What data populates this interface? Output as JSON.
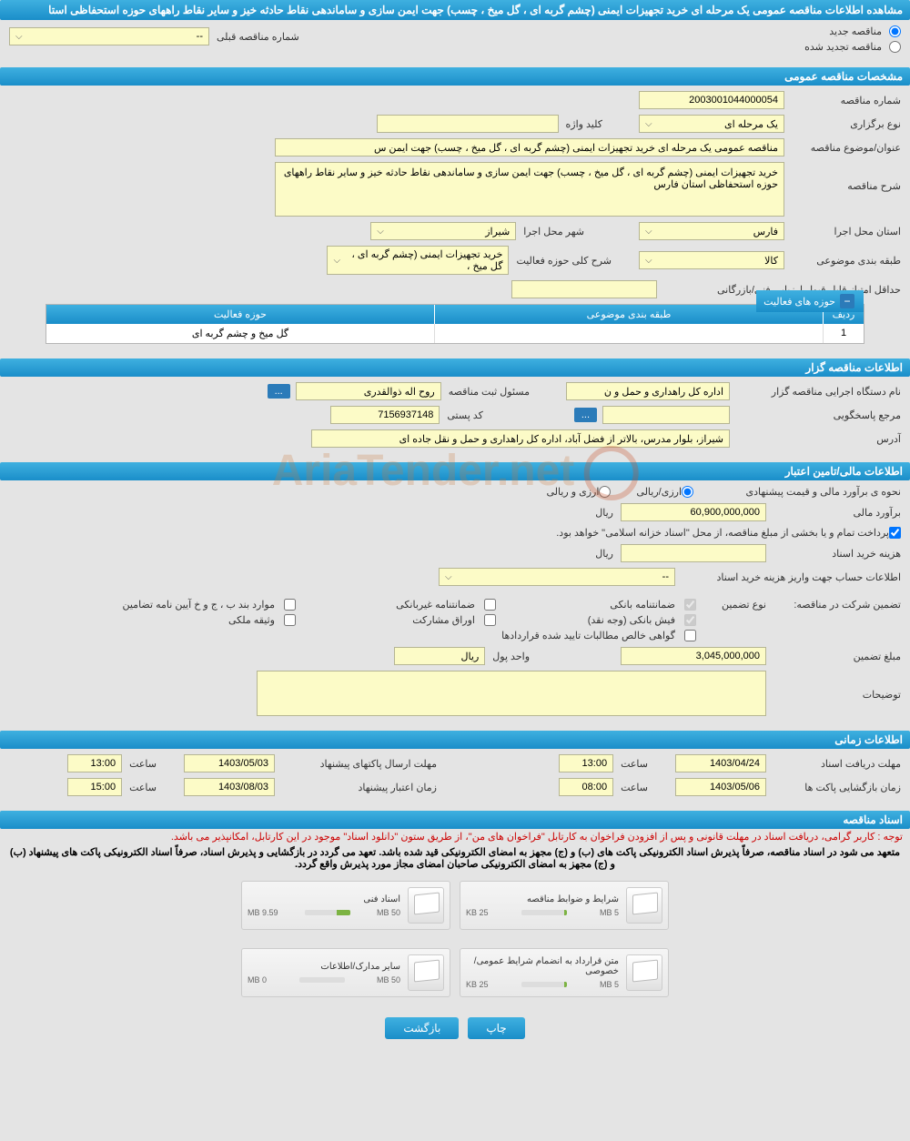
{
  "header": {
    "title": "مشاهده اطلاعات مناقصه عمومی یک مرحله ای خرید تجهیزات ایمنی (چشم گربه ای ، گل میخ ، چسب) جهت ایمن سازی و ساماندهی نقاط حادثه خیز و سایر نقاط راههای حوزه استحفاظی استا"
  },
  "tender_type": {
    "new_label": "مناقصه جدید",
    "renewed_label": "مناقصه تجدید شده",
    "new_selected": true,
    "prev_number_label": "شماره مناقصه قبلی",
    "prev_number_value": "--"
  },
  "sections": {
    "general": "مشخصات مناقصه عمومی",
    "holder": "اطلاعات مناقصه گزار",
    "financial": "اطلاعات مالی/تامین اعتبار",
    "timing": "اطلاعات زمانی",
    "documents": "اسناد مناقصه"
  },
  "general": {
    "number_label": "شماره مناقصه",
    "number_value": "2003001044000054",
    "type_label": "نوع برگزاری",
    "type_value": "یک مرحله ای",
    "keyword_label": "کلید واژه",
    "keyword_value": "",
    "title_label": "عنوان/موضوع مناقصه",
    "title_value": "مناقصه عمومی یک مرحله ای خرید تجهیزات ایمنی (چشم گربه ای ، گل میخ ، چسب) جهت ایمن س",
    "desc_label": "شرح مناقصه",
    "desc_value": "خرید تجهیزات ایمنی (چشم گربه ای ، گل میخ ، چسب) جهت ایمن سازی و ساماندهی نقاط حادثه خیز و سایر نقاط راههای حوزه استحفاظی استان فارس",
    "province_label": "استان محل اجرا",
    "province_value": "فارس",
    "city_label": "شهر محل اجرا",
    "city_value": "شیراز",
    "category_label": "طبقه بندی موضوعی",
    "category_value": "کالا",
    "activity_scope_label": "شرح کلی حوزه فعالیت",
    "activity_scope_value": "خرید تجهیزات ایمنی (چشم گربه ای ، گل میخ ،",
    "min_score_label": "حداقل امتیاز قابل قبول ارزیابی فنی/بازرگانی",
    "min_score_value": ""
  },
  "activity_table": {
    "title": "حوزه های فعالیت",
    "col_row": "ردیف",
    "col_category": "طبقه بندی موضوعی",
    "col_activity": "حوزه فعالیت",
    "rows": [
      {
        "num": "1",
        "category": "",
        "activity": "گل میخ و چشم گربه ای"
      }
    ]
  },
  "holder": {
    "org_label": "نام دستگاه اجرایی مناقصه گزار",
    "org_value": "اداره کل راهداری و حمل و ن",
    "registrar_label": "مسئول ثبت مناقصه",
    "registrar_value": "روح اله ذوالقدری",
    "responder_label": "مرجع پاسخگویی",
    "responder_value": "",
    "postal_label": "کد پستی",
    "postal_value": "7156937148",
    "address_label": "آدرس",
    "address_value": "شیراز، بلوار مدرس، بالاتر از فضل آباد، اداره کل راهداری و حمل و نقل جاده ای"
  },
  "financial": {
    "estimate_type_label": "نحوه ی برآورد مالی و قیمت پیشنهادی",
    "opt_riyal": "ارزی/ریالی",
    "opt_currency": "ارزی و ریالی",
    "estimate_label": "برآورد مالی",
    "estimate_value": "60,900,000,000",
    "unit_riyal": "ریال",
    "payment_note": "پرداخت تمام و یا بخشی از مبلغ مناقصه، از محل \"اسناد خزانه اسلامی\" خواهد بود.",
    "doc_cost_label": "هزینه خرید اسناد",
    "doc_cost_value": "",
    "account_label": "اطلاعات حساب جهت واریز هزینه خرید اسناد",
    "account_value": "--",
    "guarantee_label": "تضمین شرکت در مناقصه:",
    "guarantee_type_label": "نوع تضمین",
    "g1": "ضمانتنامه بانکی",
    "g2": "ضمانتنامه غیربانکی",
    "g3": "موارد بند ب ، ج و خ آیین نامه تضامین",
    "g4": "فیش بانکی (وجه نقد)",
    "g5": "اوراق مشارکت",
    "g6": "وثیقه ملکی",
    "g7": "گواهی خالص مطالبات تایید شده قراردادها",
    "guarantee_amount_label": "مبلغ تضمین",
    "guarantee_amount_value": "3,045,000,000",
    "currency_unit_label": "واحد پول",
    "currency_unit_value": "ریال",
    "notes_label": "توضیحات"
  },
  "timing": {
    "receive_label": "مهلت دریافت اسناد",
    "receive_date": "1403/04/24",
    "receive_time_label": "ساعت",
    "receive_time": "13:00",
    "submit_label": "مهلت ارسال پاکتهای پیشنهاد",
    "submit_date": "1403/05/03",
    "submit_time_label": "ساعت",
    "submit_time": "13:00",
    "open_label": "زمان بازگشایی پاکت ها",
    "open_date": "1403/05/06",
    "open_time_label": "ساعت",
    "open_time": "08:00",
    "validity_label": "زمان اعتبار پیشنهاد",
    "validity_date": "1403/08/03",
    "validity_time_label": "ساعت",
    "validity_time": "15:00"
  },
  "documents": {
    "note1": "توجه : کاربر گرامی، دریافت اسناد در مهلت قانونی و پس از افزودن فراخوان به کارتابل \"فراخوان های من\"، از طریق ستون \"دانلود اسناد\" موجود در این کارتابل، امکانپذیر می باشد.",
    "note2": "متعهد می شود در اسناد مناقصه، صرفاً پذیرش اسناد الکترونیکی پاکت های (ب) و (ج) مجهز به امضای الکترونیکی قید شده باشد. تعهد می گردد در بازگشایی و پذیرش اسناد، صرفاً اسناد الکترونیکی پاکت های پیشنهاد (ب) و (ج) مجهز به امضای الکترونیکی صاحبان امضای مجاز مورد پذیرش واقع گردد.",
    "files": [
      {
        "title": "شرایط و ضوابط مناقصه",
        "size": "25 KB",
        "limit": "5 MB",
        "progress": 5
      },
      {
        "title": "اسناد فنی",
        "size": "9.59 MB",
        "limit": "50 MB",
        "progress": 30
      },
      {
        "title": "متن قرارداد به انضمام شرایط عمومی/خصوصی",
        "size": "25 KB",
        "limit": "5 MB",
        "progress": 5
      },
      {
        "title": "سایر مدارک/اطلاعات",
        "size": "0 MB",
        "limit": "50 MB",
        "progress": 0
      }
    ]
  },
  "buttons": {
    "print": "چاپ",
    "back": "بازگشت"
  },
  "colors": {
    "bar_gradient_top": "#3fb0e0",
    "bar_gradient_bottom": "#1a8ec9",
    "field_bg": "#fcfbc7",
    "field_border": "#b5b593",
    "body_bg": "#e4e4e4",
    "note_red": "#cc0000",
    "progress_green": "#7cb342"
  },
  "watermark": "AriaTender.net"
}
